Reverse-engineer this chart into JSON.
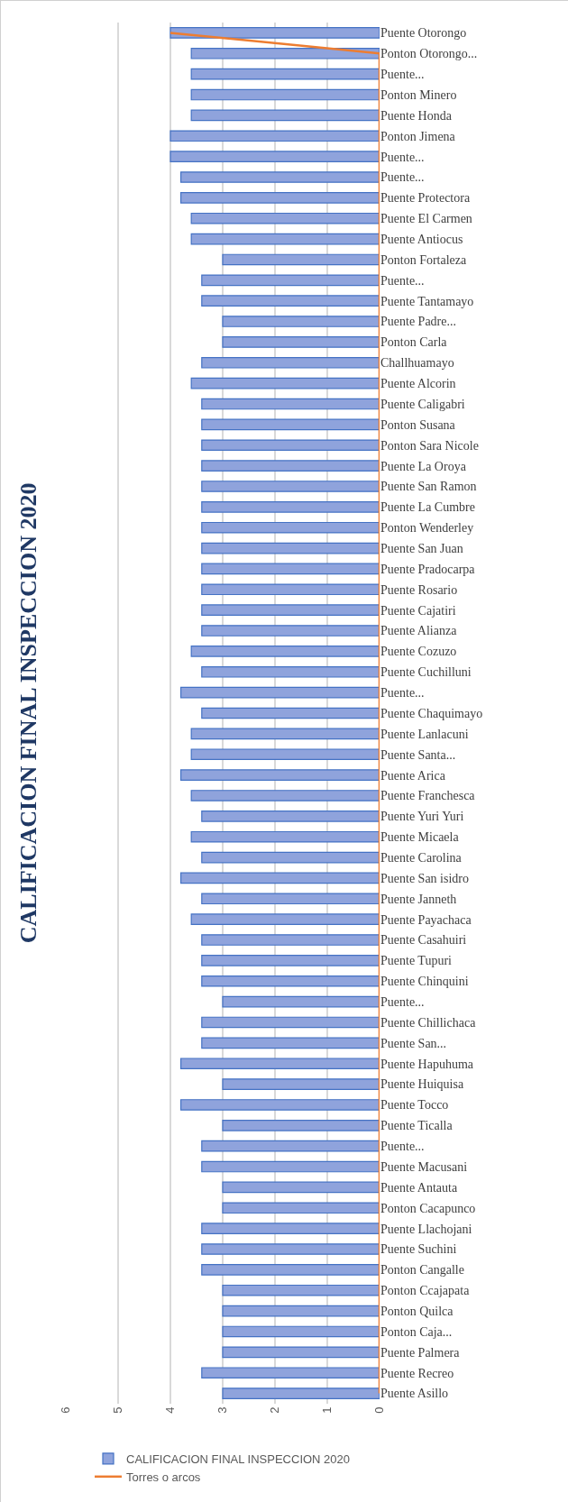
{
  "chart_data": {
    "type": "bar",
    "orientation": "horizontal",
    "title": "CALIFICACION FINAL INSPECCION 2020",
    "categories": [
      "Puente Otorongo",
      "Ponton Otorongo...",
      "Puente...",
      "Ponton Minero",
      "Puente Honda",
      "Ponton Jimena",
      "Puente...",
      "Puente...",
      "Puente Protectora",
      "Puente El Carmen",
      "Puente Antiocus",
      "Ponton Fortaleza",
      "Puente...",
      "Puente Tantamayo",
      "Puente Padre...",
      "Ponton Carla",
      "Challhuamayo",
      "Puente Alcorin",
      "Puente Caligabri",
      "Ponton Susana",
      "Ponton Sara Nicole",
      "Puente La Oroya",
      "Puente San Ramon",
      "Puente La Cumbre",
      "Ponton Wenderley",
      "Puente San Juan",
      "Puente Pradocarpa",
      "Puente Rosario",
      "Puente Cajatiri",
      "Puente Alianza",
      "Puente Cozuzo",
      "Puente Cuchilluni",
      "Puente...",
      "Puente Chaquimayo",
      "Puente Lanlacuni",
      "Puente Santa...",
      "Puente Arica",
      "Puente Franchesca",
      "Puente Yuri Yuri",
      "Puente Micaela",
      "Puente Carolina",
      "Puente San isidro",
      "Puente Janneth",
      "Puente Payachaca",
      "Puente Casahuiri",
      "Puente Tupuri",
      "Puente Chinquini",
      "Puente...",
      "Puente Chillichaca",
      "Puente San...",
      "Puente Hapuhuma",
      "Puente Huiquisa",
      "Puente Tocco",
      "Puente Ticalla",
      "Puente...",
      "Puente Macusani",
      "Puente Antauta",
      "Ponton Cacapunco",
      "Puente Llachojani",
      "Puente Suchini",
      "Ponton Cangalle",
      "Ponton Ccajapata",
      "Ponton Quilca",
      "Ponton Caja...",
      "Puente Palmera",
      "Puente Recreo",
      "Puente Asillo"
    ],
    "series": [
      {
        "name": "CALIFICACION FINAL INSPECCION 2020",
        "color": "#8fa3dc",
        "values": [
          4,
          3.6,
          3.6,
          3.6,
          3.6,
          4,
          4,
          3.8,
          3.8,
          3.6,
          3.6,
          3,
          3.4,
          3.4,
          3,
          3,
          3.4,
          3.6,
          3.4,
          3.4,
          3.4,
          3.4,
          3.4,
          3.4,
          3.4,
          3.4,
          3.4,
          3.4,
          3.4,
          3.4,
          3.6,
          3.4,
          3.8,
          3.4,
          3.6,
          3.6,
          3.8,
          3.6,
          3.4,
          3.6,
          3.4,
          3.8,
          3.4,
          3.6,
          3.4,
          3.4,
          3.4,
          3,
          3.4,
          3.4,
          3.8,
          3,
          3.8,
          3,
          3.4,
          3.4,
          3,
          3,
          3.4,
          3.4,
          3.4,
          3,
          3,
          3,
          3,
          3.4,
          3
        ]
      },
      {
        "name": "Torres o arcos",
        "type": "line",
        "color": "#ed7d31",
        "values": [
          4,
          0,
          0,
          0,
          0,
          0,
          0,
          0,
          0,
          0,
          0,
          0,
          0,
          0,
          0,
          0,
          0,
          0,
          0,
          0,
          0,
          0,
          0,
          0,
          0,
          0,
          0,
          0,
          0,
          0,
          0,
          0,
          0,
          0,
          0,
          0,
          0,
          0,
          0,
          0,
          0,
          0,
          0,
          0,
          0,
          0,
          0,
          0,
          0,
          0,
          0,
          0,
          0,
          0,
          0,
          0,
          0,
          0,
          0,
          0,
          0,
          0,
          0,
          0,
          0,
          0,
          0
        ]
      }
    ],
    "xlim": [
      6,
      0
    ],
    "xticks": [
      0,
      1,
      2,
      3,
      4,
      5,
      6
    ],
    "grid": "x",
    "legend": "bottom",
    "marker": "none"
  }
}
